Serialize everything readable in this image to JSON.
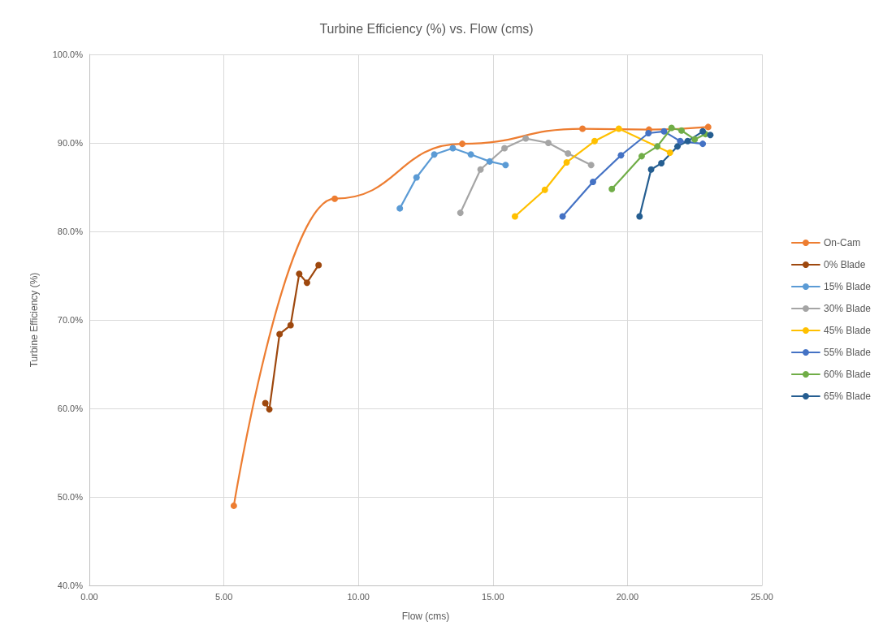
{
  "chart_data": {
    "type": "line",
    "title": "Turbine Efficiency (%) vs. Flow (cms)",
    "xlabel": "Flow (cms)",
    "ylabel": "Turbine Efficiency (%)",
    "xlim": [
      0,
      25
    ],
    "xticks": [
      {
        "value": 0,
        "label": "0.00"
      },
      {
        "value": 5,
        "label": "5.00"
      },
      {
        "value": 10,
        "label": "10.00"
      },
      {
        "value": 15,
        "label": "15.00"
      },
      {
        "value": 20,
        "label": "20.00"
      },
      {
        "value": 25,
        "label": "25.00"
      }
    ],
    "ylim": [
      40,
      100
    ],
    "yticks": [
      {
        "value": 40,
        "label": "40.0%"
      },
      {
        "value": 50,
        "label": "50.0%"
      },
      {
        "value": 60,
        "label": "60.0%"
      },
      {
        "value": 70,
        "label": "70.0%"
      },
      {
        "value": 80,
        "label": "80.0%"
      },
      {
        "value": 90,
        "label": "90.0%"
      },
      {
        "value": 100,
        "label": "100.0%"
      }
    ],
    "grid": true,
    "legend": "right",
    "marker": "circle",
    "line_style": "solid",
    "series": [
      {
        "name": "On-Cam",
        "color": "#ed7d31",
        "x": [
          5.37,
          9.12,
          13.86,
          18.33,
          20.8,
          23.0
        ],
        "values": [
          49.0,
          83.7,
          89.9,
          91.6,
          91.5,
          91.8
        ]
      },
      {
        "name": "0% Blade",
        "color": "#9e480e",
        "x": [
          6.54,
          6.69,
          7.07,
          7.48,
          7.8,
          8.09,
          8.52
        ],
        "values": [
          60.6,
          59.9,
          68.4,
          69.4,
          75.2,
          74.2,
          76.2
        ]
      },
      {
        "name": "15% Blade",
        "color": "#5b9bd5",
        "x": [
          11.54,
          12.16,
          12.82,
          13.51,
          14.18,
          14.88,
          15.47
        ],
        "values": [
          82.6,
          86.1,
          88.7,
          89.4,
          88.7,
          87.9,
          87.5
        ]
      },
      {
        "name": "30% Blade",
        "color": "#a5a5a5",
        "x": [
          13.79,
          14.54,
          15.43,
          16.22,
          17.06,
          17.79,
          18.65
        ],
        "values": [
          82.1,
          87.0,
          89.4,
          90.5,
          90.0,
          88.8,
          87.5
        ]
      },
      {
        "name": "45% Blade",
        "color": "#ffc000",
        "x": [
          15.82,
          16.93,
          17.74,
          18.78,
          19.68,
          21.58
        ],
        "values": [
          81.7,
          84.7,
          87.8,
          90.2,
          91.6,
          88.9
        ]
      },
      {
        "name": "55% Blade",
        "color": "#4472c4",
        "x": [
          17.59,
          18.72,
          19.76,
          20.78,
          21.36,
          21.96,
          22.8
        ],
        "values": [
          81.7,
          85.6,
          88.6,
          91.1,
          91.3,
          90.2,
          89.9
        ]
      },
      {
        "name": "60% Blade",
        "color": "#70ad47",
        "x": [
          19.42,
          20.53,
          21.11,
          21.64,
          22.01,
          22.5,
          22.9
        ],
        "values": [
          84.8,
          88.5,
          89.6,
          91.7,
          91.4,
          90.4,
          91.0
        ]
      },
      {
        "name": "65% Blade",
        "color": "#255e91",
        "x": [
          20.45,
          20.88,
          21.26,
          21.86,
          22.24,
          22.8,
          23.08
        ],
        "values": [
          81.7,
          87.0,
          87.7,
          89.6,
          90.2,
          91.3,
          90.9
        ]
      }
    ]
  }
}
